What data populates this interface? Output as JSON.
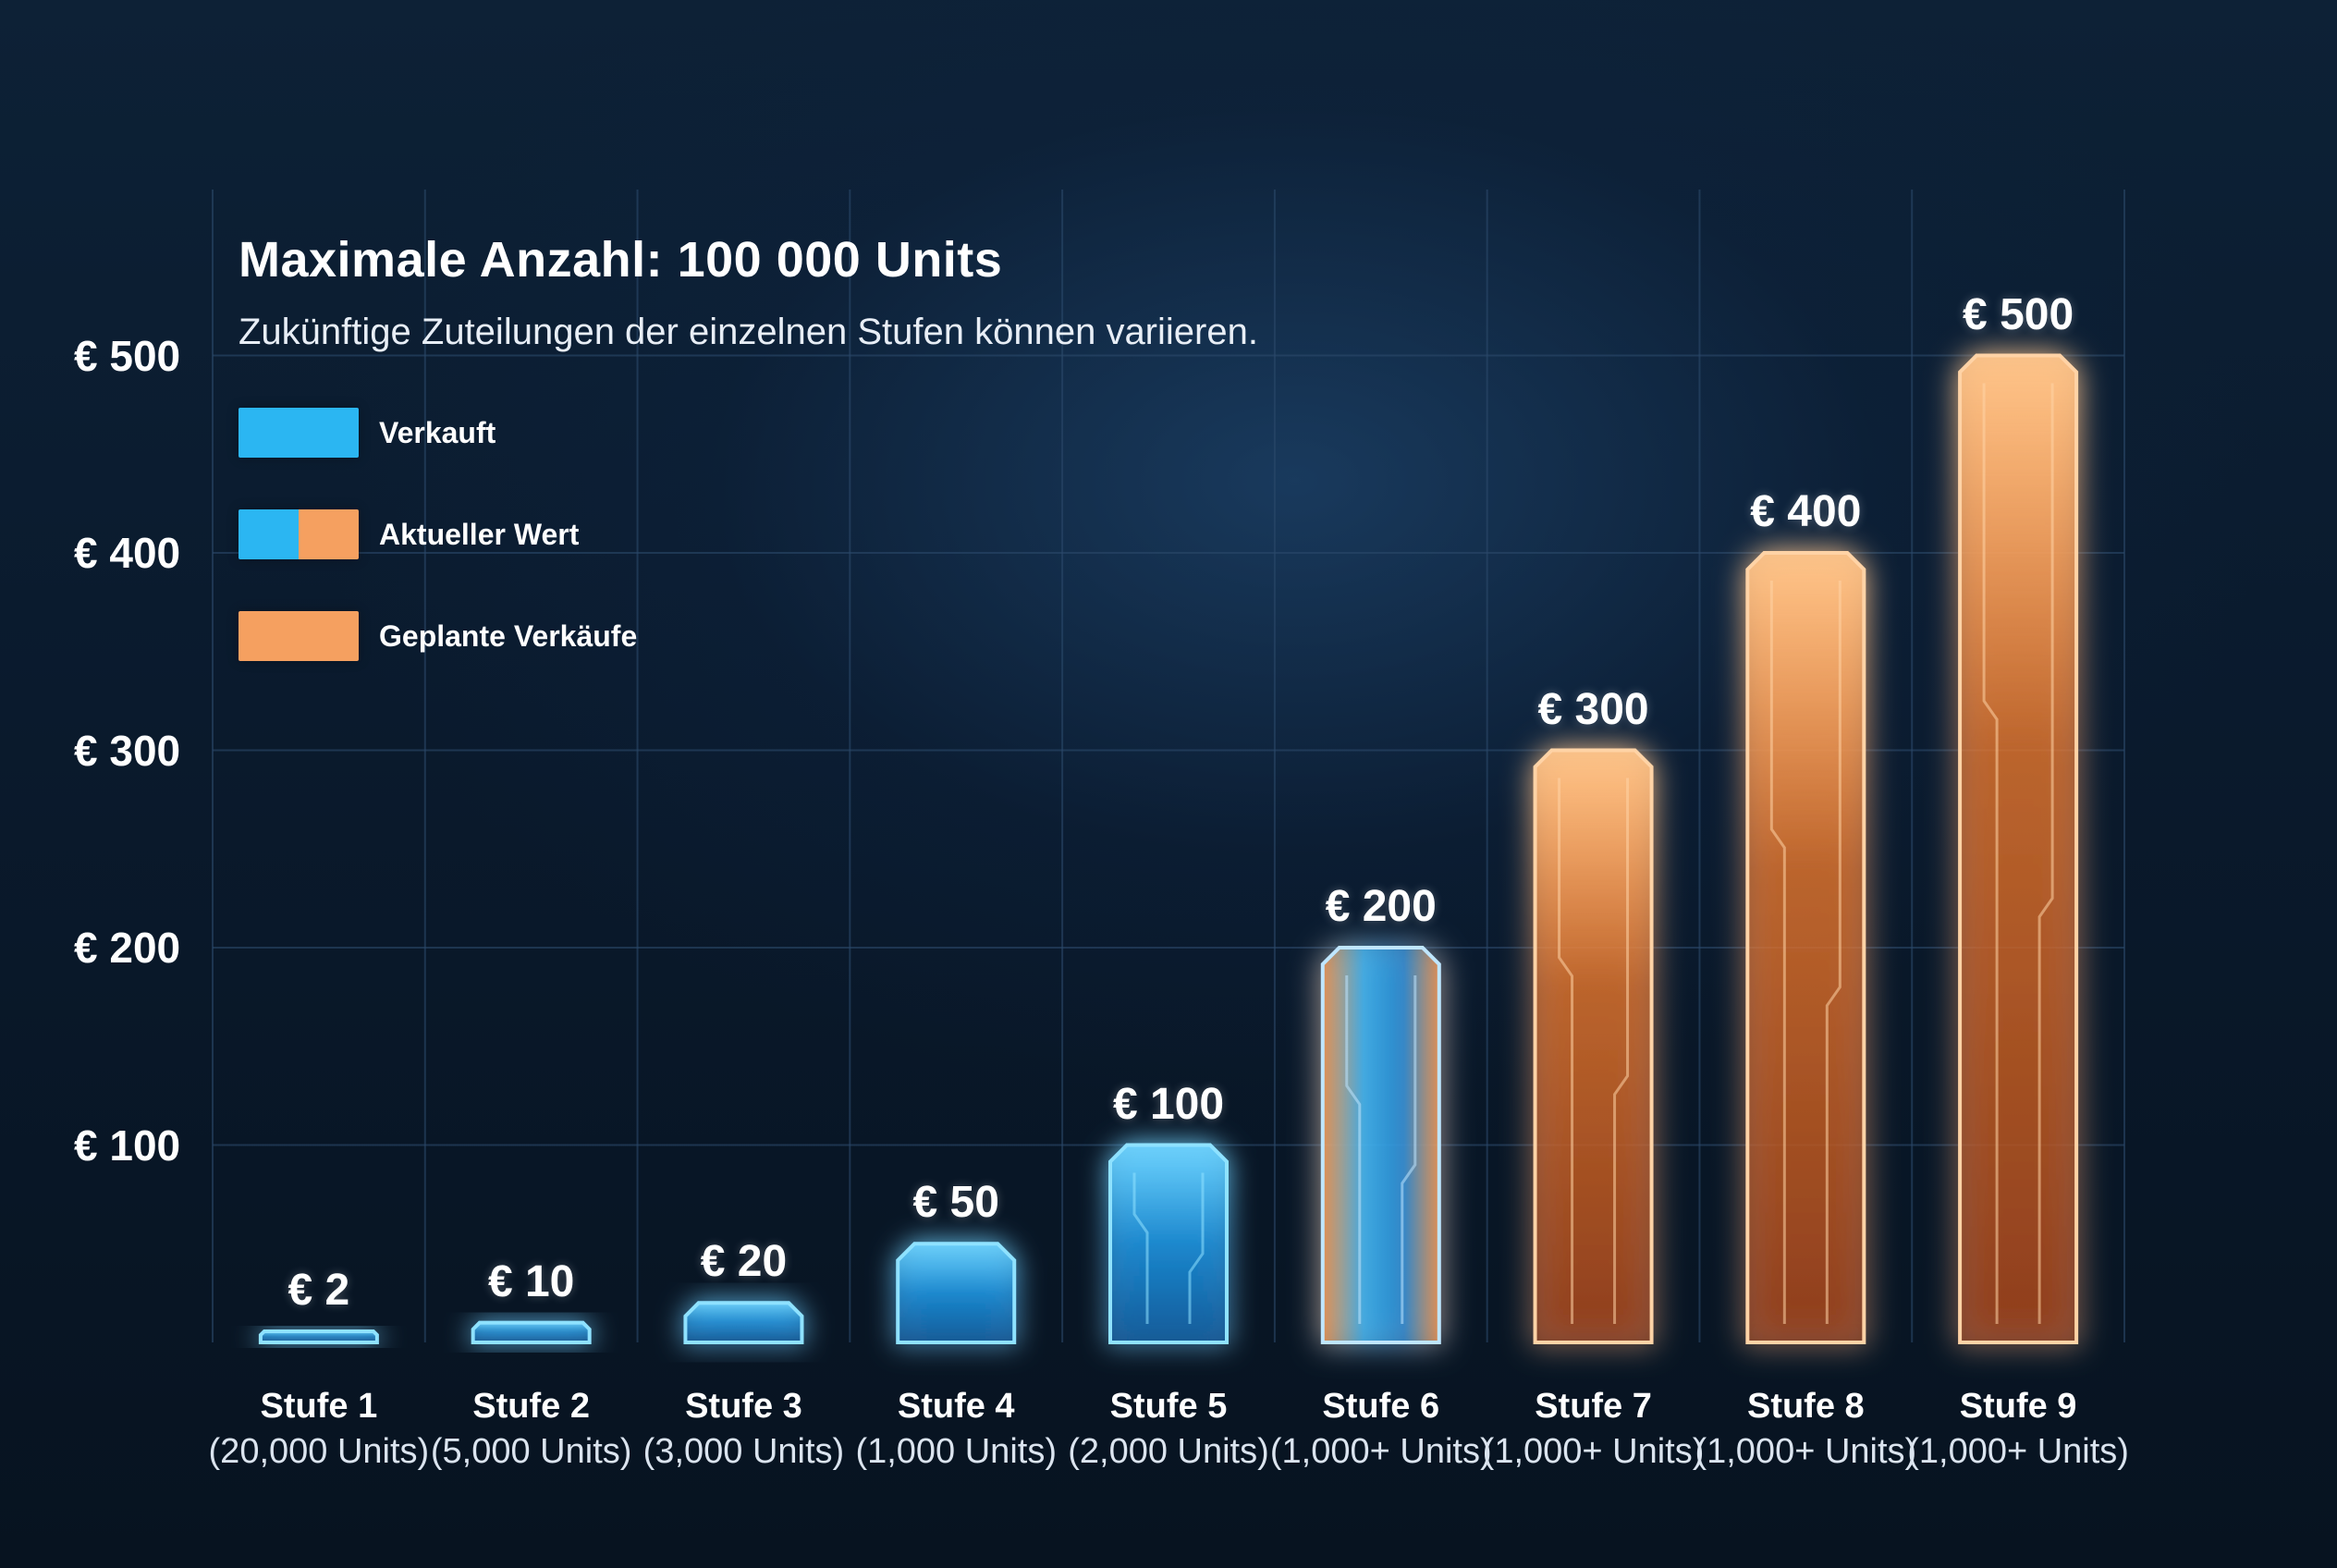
{
  "chart_data": {
    "type": "bar",
    "title": "Maximale Anzahl: 100 000 Units",
    "subtitle": "Zukünftige Zuteilungen der einzelnen Stufen können variieren.",
    "categories": [
      "Stufe 1",
      "Stufe 2",
      "Stufe 3",
      "Stufe 4",
      "Stufe 5",
      "Stufe 6",
      "Stufe 7",
      "Stufe 8",
      "Stufe 9"
    ],
    "category_units": [
      "(20,000 Units)",
      "(5,000 Units)",
      "(3,000 Units)",
      "(1,000 Units)",
      "(2,000 Units)",
      "(1,000+ Units)",
      "(1,000+ Units)",
      "(1,000+ Units)",
      "(1,000+ Units)"
    ],
    "values": [
      2,
      10,
      20,
      50,
      100,
      200,
      300,
      400,
      500
    ],
    "value_labels": [
      "€ 2",
      "€ 10",
      "€ 20",
      "€ 50",
      "€ 100",
      "€ 200",
      "€ 300",
      "€ 400",
      "€ 500"
    ],
    "status": [
      "sold",
      "sold",
      "sold",
      "sold",
      "sold",
      "current",
      "planned",
      "planned",
      "planned"
    ],
    "yticks": [
      100,
      200,
      300,
      400,
      500
    ],
    "ytick_labels": [
      "€ 100",
      "€ 200",
      "€ 300",
      "€ 400",
      "€ 500"
    ],
    "ylim": [
      0,
      520
    ],
    "grid": true,
    "legend": {
      "placement": "top-left",
      "items": [
        {
          "label": "Verkauft",
          "key": "sold"
        },
        {
          "label": "Aktueller Wert",
          "key": "current"
        },
        {
          "label": "Geplante Verkäufe",
          "key": "planned"
        }
      ]
    },
    "colors": {
      "sold": "#2bb6f2",
      "planned": "#f5a060",
      "grid": "#2b4a6b",
      "axis": "#3a9ee6"
    }
  }
}
